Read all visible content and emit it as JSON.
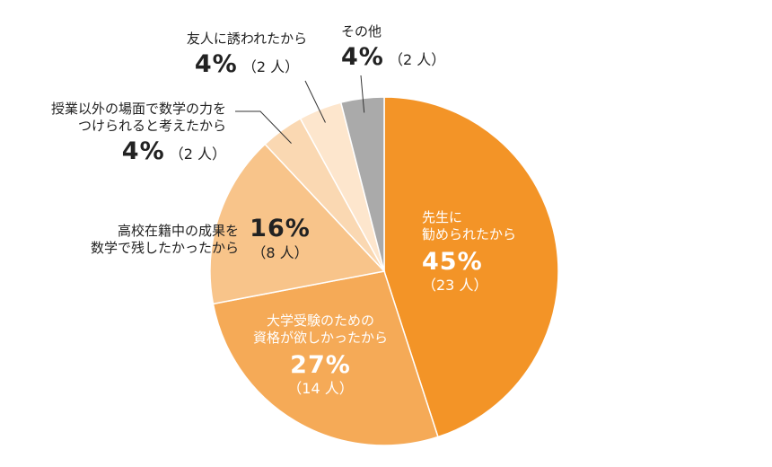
{
  "chart_data": {
    "type": "pie",
    "colors": [
      "#f39427",
      "#f5aa57",
      "#f8c48a",
      "#fad8b2",
      "#fde6cd",
      "#aaaaaa"
    ],
    "slices": [
      {
        "label_lines": [
          "先生に",
          "勧められたから"
        ],
        "percent_text": "45%",
        "count_text": "（23 人）",
        "value": 45
      },
      {
        "label_lines": [
          "大学受験のための",
          "資格が欲しかったから"
        ],
        "percent_text": "27%",
        "count_text": "（14 人）",
        "value": 27
      },
      {
        "label_lines": [
          "高校在籍中の成果を",
          "数学で残したかったから"
        ],
        "percent_text": "16%",
        "count_text": "（8 人）",
        "value": 16
      },
      {
        "label_lines": [
          "授業以外の場面で数学の力を",
          "つけられると考えたから"
        ],
        "percent_text": "4%",
        "count_text": "（2 人）",
        "value": 4
      },
      {
        "label_lines": [
          "友人に誘われたから"
        ],
        "percent_text": "4%",
        "count_text": "（2 人）",
        "value": 4
      },
      {
        "label_lines": [
          "その他"
        ],
        "percent_text": "4%",
        "count_text": "（2 人）",
        "value": 4
      }
    ]
  }
}
